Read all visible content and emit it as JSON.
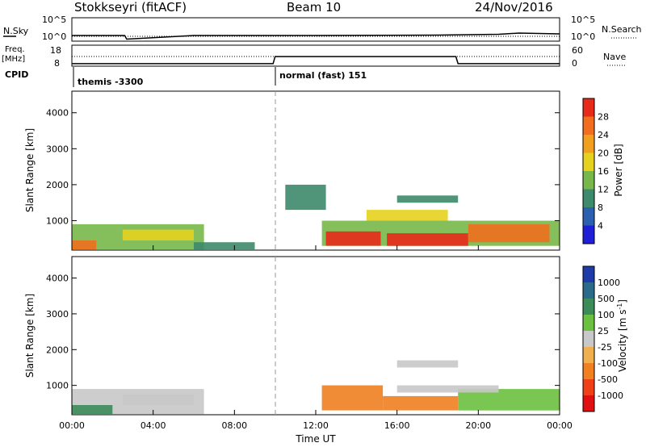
{
  "header": {
    "station": "Stokkseyri (fitACF)",
    "beam": "Beam 10",
    "date": "24/Nov/2016"
  },
  "nsky_panel": {
    "label": "N.Sky",
    "ticks": [
      "10^5",
      "10^0"
    ],
    "right_label": "N.Search",
    "right_ticks": [
      "10^5",
      "10^0"
    ]
  },
  "freq_panel": {
    "label_top": "Freq.",
    "label_unit": "[MHz]",
    "ticks": [
      "18",
      "8"
    ],
    "right_label": "Nave",
    "right_ticks": [
      "60",
      "0"
    ]
  },
  "cpid": {
    "label": "CPID",
    "segments": [
      {
        "text": "themis -3300",
        "start": "00:00",
        "end": "10:00"
      },
      {
        "text": "normal (fast) 151",
        "start": "10:00",
        "end": "24:00"
      }
    ]
  },
  "x_axis": {
    "label": "Time UT",
    "ticks": [
      "00:00",
      "04:00",
      "08:00",
      "12:00",
      "16:00",
      "20:00",
      "00:00"
    ]
  },
  "power_panel": {
    "ylabel": "Slant Range [km]",
    "yticks": [
      "1000",
      "2000",
      "3000",
      "4000"
    ],
    "colorbar_label": "Power [dB]",
    "colorbar_ticks": [
      "4",
      "8",
      "12",
      "16",
      "20",
      "24",
      "28"
    ],
    "colors": [
      "#1f1fd8",
      "#2b5fb0",
      "#3d8a6c",
      "#78b84a",
      "#e6d21e",
      "#f0a01e",
      "#f06e1e",
      "#e82a1a"
    ]
  },
  "velocity_panel": {
    "ylabel": "Slant Range [km]",
    "yticks": [
      "1000",
      "2000",
      "3000",
      "4000"
    ],
    "colorbar_label": "Velocity [m s",
    "colorbar_sup": "-1",
    "colorbar_label_end": "]",
    "colorbar_ticks": [
      "1000",
      "500",
      "100",
      "25",
      "-25",
      "-100",
      "-500",
      "-1000"
    ],
    "colors": [
      "#1e3ca8",
      "#2a6a8a",
      "#3c8c5a",
      "#6cc040",
      "#c8c8c8",
      "#f0b050",
      "#f08020",
      "#f04018",
      "#e01010"
    ]
  },
  "chart_data": [
    {
      "type": "line",
      "title": "N.Sky / N.Search",
      "x": [
        0,
        2.6,
        2.7,
        6,
        12,
        18,
        21,
        22,
        24
      ],
      "series": [
        {
          "name": "N.Sky",
          "log10_values": [
            1.0,
            1.0,
            0.1,
            1.0,
            1.0,
            1.1,
            1.3,
            1.6,
            1.4
          ]
        }
      ],
      "ylim": [
        0,
        5
      ]
    },
    {
      "type": "line",
      "title": "Frequency and Nave",
      "x": [
        0,
        9.9,
        10.0,
        18.9,
        19.0,
        24
      ],
      "series": [
        {
          "name": "Freq",
          "values": [
            8.5,
            8.5,
            12.5,
            12.5,
            8.5,
            8.5
          ]
        },
        {
          "name": "Nave",
          "values": [
            30,
            30,
            30,
            30,
            30,
            30
          ]
        }
      ],
      "ylim": [
        8,
        18
      ]
    },
    {
      "type": "heatmap",
      "title": "Power",
      "xlabel": "Time UT",
      "ylabel": "Slant Range [km]",
      "xlim": [
        0,
        24
      ],
      "ylim": [
        180,
        4600
      ],
      "zlim": [
        0,
        30
      ],
      "regions": [
        {
          "t0": 0.0,
          "t1": 6.5,
          "r0": 200,
          "r1": 900,
          "value": 14
        },
        {
          "t0": 0.0,
          "t1": 1.2,
          "r0": 200,
          "r1": 450,
          "value": 26
        },
        {
          "t0": 2.5,
          "t1": 6.0,
          "r0": 450,
          "r1": 750,
          "value": 18
        },
        {
          "t0": 6.0,
          "t1": 9.0,
          "r0": 200,
          "r1": 400,
          "value": 8
        },
        {
          "t0": 12.3,
          "t1": 24.0,
          "r0": 300,
          "r1": 1000,
          "value": 14
        },
        {
          "t0": 12.5,
          "t1": 15.2,
          "r0": 300,
          "r1": 700,
          "value": 28
        },
        {
          "t0": 15.5,
          "t1": 19.5,
          "r0": 300,
          "r1": 650,
          "value": 28
        },
        {
          "t0": 19.5,
          "t1": 23.5,
          "r0": 400,
          "r1": 900,
          "value": 24
        },
        {
          "t0": 16.0,
          "t1": 19.0,
          "r0": 1500,
          "r1": 1700,
          "value": 10
        },
        {
          "t0": 14.5,
          "t1": 18.5,
          "r0": 1000,
          "r1": 1300,
          "value": 16
        },
        {
          "t0": 10.5,
          "t1": 12.5,
          "r0": 1300,
          "r1": 2000,
          "value": 8
        }
      ]
    },
    {
      "type": "heatmap",
      "title": "Velocity",
      "xlabel": "Time UT",
      "ylabel": "Slant Range [km]",
      "xlim": [
        0,
        24
      ],
      "ylim": [
        180,
        4600
      ],
      "zlim": [
        -1000,
        1000
      ],
      "regions": [
        {
          "t0": 0.0,
          "t1": 6.5,
          "r0": 200,
          "r1": 900,
          "value": 0
        },
        {
          "t0": 0.0,
          "t1": 2.0,
          "r0": 200,
          "r1": 450,
          "value": 100
        },
        {
          "t0": 2.5,
          "t1": 6.0,
          "r0": 450,
          "r1": 750,
          "value": 0
        },
        {
          "t0": 12.3,
          "t1": 15.3,
          "r0": 300,
          "r1": 1000,
          "value": -300
        },
        {
          "t0": 15.3,
          "t1": 19.0,
          "r0": 300,
          "r1": 700,
          "value": -150
        },
        {
          "t0": 19.0,
          "t1": 24.0,
          "r0": 300,
          "r1": 900,
          "value": 50
        },
        {
          "t0": 16.0,
          "t1": 19.0,
          "r0": 1500,
          "r1": 1700,
          "value": 0
        },
        {
          "t0": 16.0,
          "t1": 21.0,
          "r0": 800,
          "r1": 1000,
          "value": 0
        }
      ]
    }
  ]
}
